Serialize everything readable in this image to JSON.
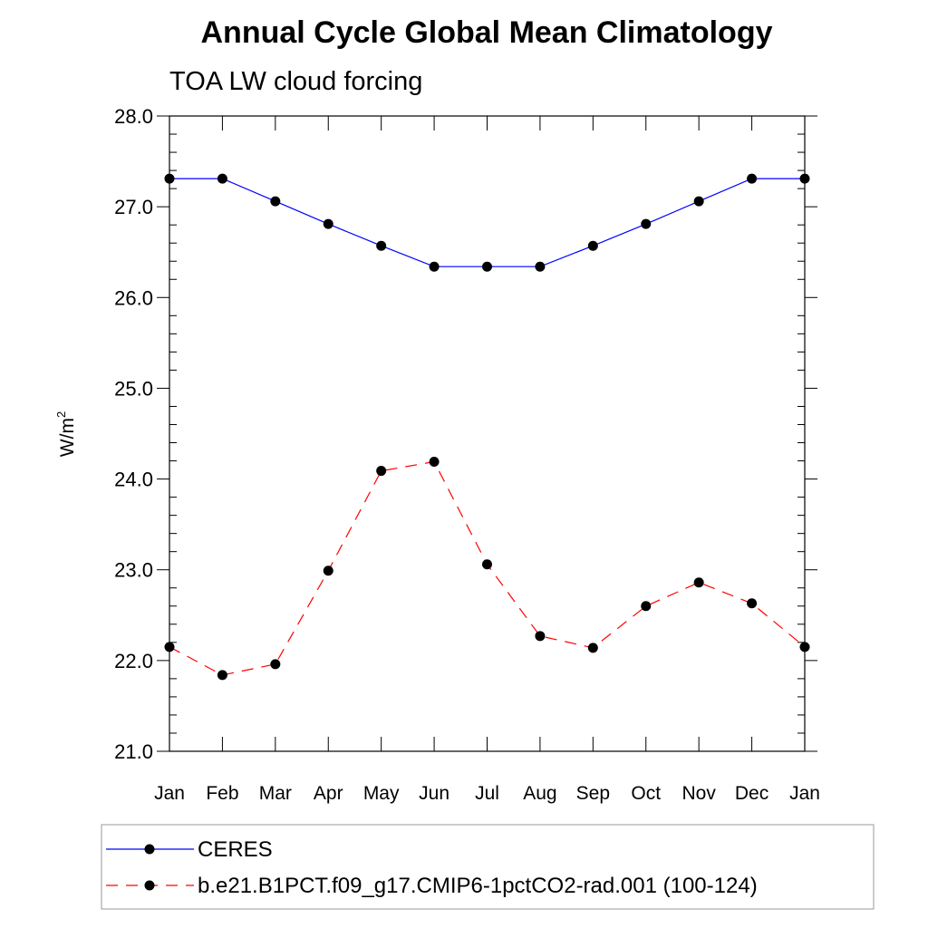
{
  "chart_data": {
    "type": "line",
    "title": "Annual Cycle Global Mean Climatology",
    "subtitle": "TOA LW cloud forcing",
    "ylabel": "W/m",
    "ylabel_sup": "2",
    "xlabel": "",
    "ylim": [
      21.0,
      28.0
    ],
    "yticks": [
      "21.0",
      "22.0",
      "23.0",
      "24.0",
      "25.0",
      "26.0",
      "27.0",
      "28.0"
    ],
    "categories": [
      "Jan",
      "Feb",
      "Mar",
      "Apr",
      "May",
      "Jun",
      "Jul",
      "Aug",
      "Sep",
      "Oct",
      "Nov",
      "Dec",
      "Jan"
    ],
    "series": [
      {
        "name": "CERES",
        "color": "#0000ff",
        "dash": "solid",
        "values": [
          27.31,
          27.31,
          27.06,
          26.81,
          26.57,
          26.34,
          26.34,
          26.34,
          26.57,
          26.81,
          27.06,
          27.31,
          27.31
        ]
      },
      {
        "name": "b.e21.B1PCT.f09_g17.CMIP6-1pctCO2-rad.001 (100-124)",
        "color": "#ff0000",
        "dash": "dashed",
        "values": [
          22.15,
          21.84,
          21.96,
          22.99,
          24.09,
          24.19,
          23.06,
          22.27,
          22.14,
          22.6,
          22.86,
          22.63,
          22.15
        ]
      }
    ],
    "legend_position": "bottom"
  }
}
